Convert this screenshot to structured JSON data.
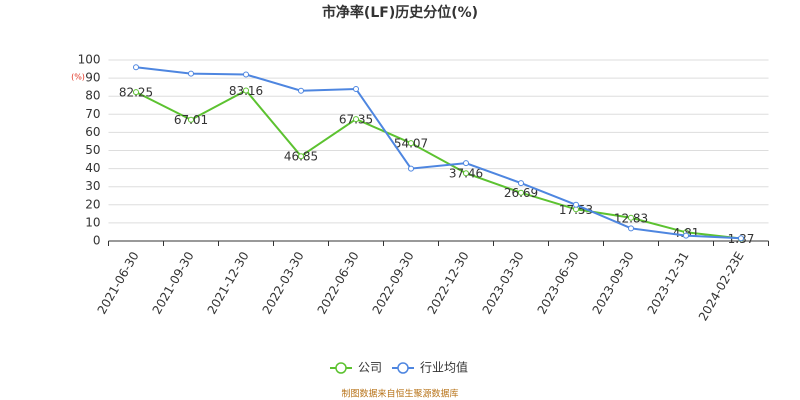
{
  "chart_data": {
    "type": "line",
    "title": "市净率(LF)历史分位(%)",
    "y_label": "(%)",
    "categories": [
      "2021-06-30",
      "2021-09-30",
      "2021-12-30",
      "2022-03-30",
      "2022-06-30",
      "2022-09-30",
      "2022-12-30",
      "2023-03-30",
      "2023-06-30",
      "2023-09-30",
      "2023-12-31",
      "2024-02-23E"
    ],
    "series": [
      {
        "name": "公司",
        "color": "#5cc230",
        "values": [
          82.25,
          67.01,
          83.16,
          46.85,
          67.35,
          54.07,
          37.46,
          26.69,
          17.53,
          12.83,
          4.81,
          1.37
        ],
        "show_labels": true
      },
      {
        "name": "行业均值",
        "color": "#4e86e0",
        "values": [
          96,
          92.5,
          92,
          83,
          84,
          40,
          43,
          32,
          20,
          7,
          3,
          1.5
        ],
        "show_labels": false
      }
    ],
    "ylim": [
      0,
      100
    ],
    "yticks": [
      0,
      10,
      20,
      30,
      40,
      50,
      60,
      70,
      80,
      90,
      100
    ],
    "grid": true,
    "legend": "bottom",
    "source": "制图数据来自恒生聚源数据库"
  }
}
